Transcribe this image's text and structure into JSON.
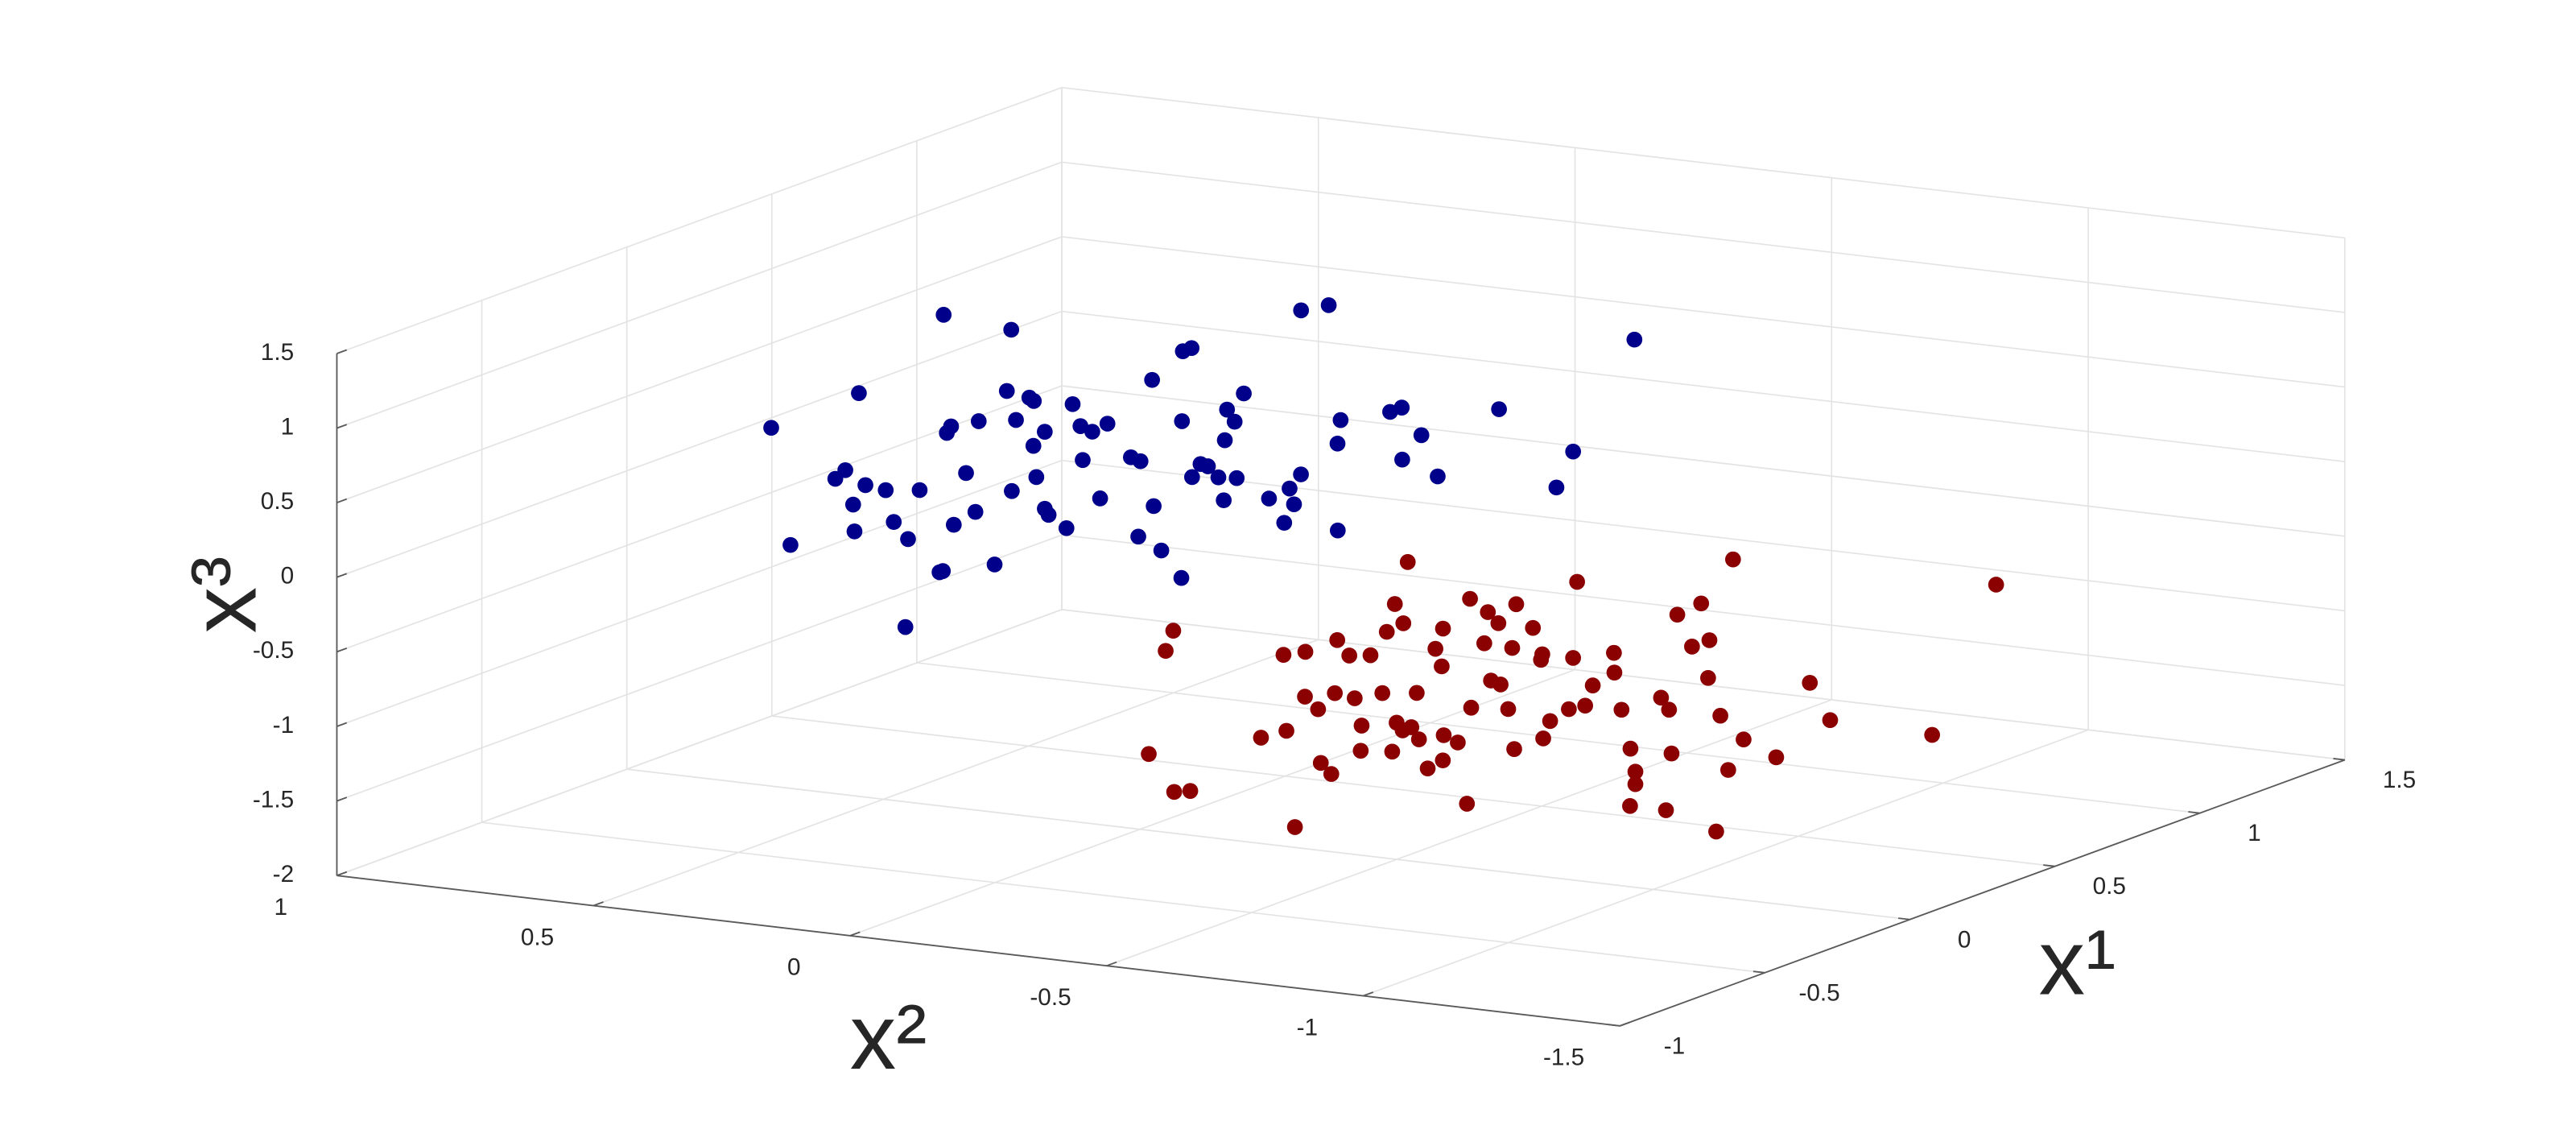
{
  "chart_data": {
    "type": "scatter3d",
    "xlabel": "x¹",
    "ylabel": "x²",
    "zlabel": "x³",
    "xlim": [
      -1,
      1.5
    ],
    "ylim": [
      -1.5,
      1
    ],
    "zlim": [
      -2,
      1.5
    ],
    "xticks": [
      -1,
      -0.5,
      0,
      0.5,
      1,
      1.5
    ],
    "yticks": [
      -1.5,
      -1,
      -0.5,
      0,
      0.5,
      1
    ],
    "zticks": [
      -2,
      -1.5,
      -1,
      -0.5,
      0,
      0.5,
      1,
      1.5
    ],
    "grid": true,
    "series": [
      {
        "color": "#00008B",
        "x": [
          -0.21,
          -0.71,
          0.11,
          -0.52,
          -0.45,
          -0.37,
          -0.56,
          -0.54,
          -0.24,
          -0.46,
          -0.57,
          -0.53,
          -0.88,
          0.42,
          -0.1,
          -0.78,
          -0.43,
          -0.37,
          0.01,
          -0.32,
          -0.36,
          0.37,
          -0.07,
          0.05,
          -0.46,
          0.22,
          -0.12,
          -0.34,
          -0.24,
          -0.28,
          0.21,
          -0.36,
          0.06,
          -0.18,
          0.03,
          -0.12,
          0.1,
          -0.12,
          -0.14,
          0.13,
          -0.36,
          -0.13,
          -0.44,
          0.36,
          0.39,
          0.18,
          -0.3,
          -0.21,
          -0.11,
          -0.12,
          0.3,
          -0.03,
          0.08,
          0.22,
          -0.18,
          0.11,
          0.02,
          0.75,
          -0.14,
          -0.21,
          -0.1,
          0.81,
          0.32,
          0.15,
          -0.15,
          0.42,
          0.46,
          0.09,
          0.28,
          0,
          0.53,
          0.02,
          0.29,
          0.82,
          0.2,
          -0.05,
          -0.01,
          -0.45,
          -0.19,
          0
        ],
        "y": [
          0.6,
          0.28,
          0.61,
          0.3,
          0.32,
          0.35,
          0.24,
          0.23,
          0.36,
          0.22,
          0.13,
          0.13,
          -0.04,
          0.62,
          0.32,
          -0.05,
          0.12,
          0.13,
          0.32,
          0.14,
          0.08,
          0.46,
          0.22,
          0.27,
          -0.01,
          0.34,
          0.14,
          0.01,
          0.05,
          0.02,
          0.25,
          -0.06,
          0.15,
          0.01,
          0.11,
          0.01,
          0.12,
          -0.05,
          -0.08,
          0.05,
          -0.2,
          -0.1,
          -0.29,
          0.12,
          0.12,
          0.02,
          -0.25,
          -0.22,
          -0.18,
          -0.2,
          0,
          -0.18,
          -0.12,
          -0.06,
          -0.29,
          -0.14,
          -0.24,
          0.11,
          -0.36,
          -0.41,
          -0.37,
          0.09,
          -0.21,
          -0.3,
          -0.47,
          -0.25,
          -0.25,
          -0.46,
          -0.39,
          -0.58,
          -0.4,
          -0.8,
          -0.68,
          -0.5,
          0.32,
          0.34,
          0.18,
          0.13,
          -0.26,
          -0.3
        ],
        "z": [
          0.6,
          0.3,
          0.6,
          0.6,
          0.6,
          0.3,
          0.3,
          0.6,
          0.3,
          0.3,
          0.3,
          0.6,
          0,
          0.9,
          0.6,
          0.3,
          0.3,
          0.6,
          0.6,
          0.3,
          0,
          0.9,
          0.9,
          0.6,
          0.6,
          0.6,
          0.6,
          0.6,
          0.3,
          0.3,
          0.6,
          0.3,
          0.6,
          0.6,
          0.6,
          0.3,
          0.6,
          0.6,
          0.6,
          0.9,
          0.3,
          0.3,
          0.3,
          0.9,
          0.9,
          0.6,
          0,
          0.6,
          0.6,
          0.6,
          0.6,
          0.3,
          0.6,
          0.6,
          0.6,
          0.9,
          0.3,
          0.9,
          0.3,
          0.6,
          0.6,
          0.9,
          0.6,
          0.6,
          0.3,
          0.6,
          0.6,
          0.6,
          0.6,
          0.6,
          0.6,
          0.6,
          0.6,
          0.9,
          0.6,
          0.6,
          0.6,
          0,
          0.6,
          0.3
        ]
      },
      {
        "color": "#8B0000",
        "x": [
          0.38,
          0.23,
          -0.2,
          -0.13,
          -0.11,
          0.01,
          0.3,
          0.08,
          0.34,
          -0.28,
          0.02,
          0.26,
          -0.12,
          0.45,
          0.07,
          -0.19,
          0.35,
          0.05,
          0.18,
          0,
          0.37,
          0.55,
          0.11,
          0.33,
          0.64,
          0.2,
          0.02,
          0.23,
          0.18,
          0.21,
          0.14,
          0.13,
          0.47,
          0.35,
          -0.07,
          0.18,
          0,
          0.14,
          0.43,
          0.08,
          0.03,
          0.55,
          0.35,
          0.29,
          0.28,
          0.27,
          0.42,
          0.54,
          0.43,
          0.14,
          0.7,
          0.48,
          0.24,
          0.37,
          0.64,
          0.52,
          0.47,
          0.19,
          0.34,
          0.59,
          0.45,
          0.51,
          0.24,
          0.31,
          0.08,
          0.15,
          0.31,
          0.55,
          0.24,
          0.15,
          0.49,
          0.7,
          0.59,
          0.76,
          0.49,
          0.55,
          0.93,
          0.04,
          0.17,
          0.4,
          0.3,
          0.54,
          0.61,
          0.59,
          0.97,
          0.52,
          0.62
        ],
        "y": [
          0.15,
          0.08,
          -0.13,
          -0.14,
          -0.16,
          -0.23,
          -0.11,
          -0.24,
          -0.13,
          -0.46,
          -0.31,
          -0.2,
          -0.42,
          -0.13,
          -0.34,
          -0.48,
          -0.21,
          -0.39,
          -0.33,
          -0.43,
          -0.24,
          -0.17,
          -0.41,
          -0.31,
          -0.16,
          -0.4,
          -0.48,
          -0.37,
          -0.41,
          -0.41,
          -0.46,
          -0.47,
          -0.31,
          -0.39,
          -0.6,
          -0.49,
          -0.59,
          -0.54,
          -0.4,
          -0.6,
          -0.62,
          -0.36,
          -0.48,
          -0.52,
          -0.54,
          -0.55,
          -0.48,
          -0.42,
          -0.49,
          -0.65,
          -0.37,
          -0.51,
          -0.65,
          -0.59,
          -0.49,
          -0.55,
          -0.57,
          -0.76,
          -0.69,
          -0.59,
          -0.67,
          -0.65,
          -0.82,
          -0.79,
          -0.92,
          -0.87,
          -0.84,
          -0.72,
          -0.9,
          -0.94,
          -0.77,
          -0.68,
          -0.76,
          -0.68,
          -0.83,
          -0.82,
          -0.63,
          -1.1,
          -1.05,
          -0.95,
          -1.07,
          -1.0,
          -1.0,
          -1.21,
          -1.12,
          -0.49,
          -0.24
        ],
        "z": [
          -1.0,
          -1.0,
          -1.3,
          -1.6,
          -1.6,
          -1.3,
          -1.0,
          -1.3,
          -1.0,
          -1.6,
          -1.0,
          -1.3,
          -1.3,
          -1.0,
          -1.0,
          -1.3,
          -1.0,
          -1.0,
          -1.3,
          -1.3,
          -1.0,
          -1.0,
          -1.0,
          -0.6,
          -0.6,
          -0.6,
          -1.3,
          -1.3,
          -1.3,
          -1.3,
          -1.0,
          -1.3,
          -1.0,
          -1.0,
          -1.3,
          -1.3,
          -1.3,
          -1.3,
          -0.6,
          -1.0,
          -1.6,
          -1.0,
          -0.6,
          -1.0,
          -0.6,
          -1.0,
          -1.3,
          -1.0,
          -0.6,
          -1.3,
          -1.0,
          -1.0,
          -1.3,
          -1.3,
          -0.6,
          -1.0,
          -1.3,
          -1.0,
          -1.0,
          -1.0,
          -1.0,
          -1.3,
          -1.3,
          -1.6,
          -1.3,
          -1.6,
          -1.0,
          -1.3,
          -1.3,
          -1.6,
          -0.6,
          -1.0,
          -0.6,
          -1.0,
          -1.0,
          -1.3,
          -0.6,
          -1.6,
          -1.3,
          -1.3,
          -1.3,
          -1.0,
          -1.3,
          -1.3,
          -0.6,
          -1.0,
          -1.0
        ]
      }
    ]
  }
}
